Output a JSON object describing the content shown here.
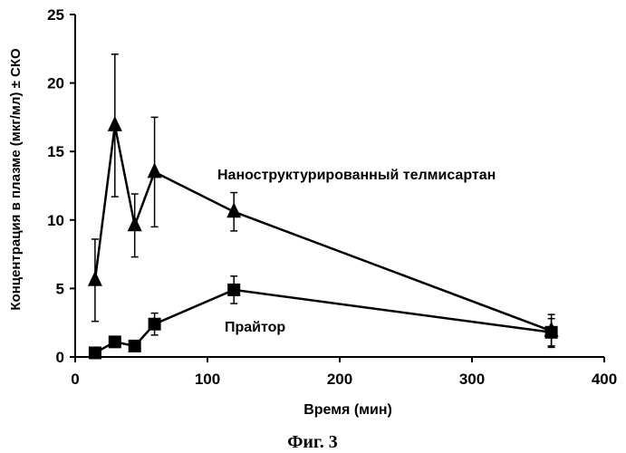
{
  "figure_caption": "Фиг. 3",
  "chart_data": {
    "type": "line",
    "title": "",
    "xlabel": "Время (мин)",
    "ylabel": "Концентрация в плазме (мкг/мл) ± СКО",
    "xlim": [
      0,
      400
    ],
    "ylim": [
      0,
      25
    ],
    "xticks": [
      0,
      100,
      200,
      300,
      400
    ],
    "yticks": [
      0,
      5,
      10,
      15,
      20,
      25
    ],
    "grid": false,
    "series": [
      {
        "name": "Наноструктурированный телмисартан",
        "marker": "triangle",
        "x": [
          15,
          30,
          45,
          60,
          120,
          360
        ],
        "y": [
          5.6,
          16.9,
          9.6,
          13.5,
          10.6,
          1.9
        ],
        "err": [
          3.0,
          5.2,
          2.3,
          4.0,
          1.4,
          1.2
        ]
      },
      {
        "name": "Прайтор",
        "marker": "square",
        "x": [
          15,
          30,
          45,
          60,
          120,
          360
        ],
        "y": [
          0.3,
          1.1,
          0.8,
          2.4,
          4.9,
          1.8
        ],
        "err": [
          0.2,
          0.2,
          0.2,
          0.8,
          1.0,
          1.0
        ]
      }
    ],
    "annotations": [
      {
        "text": "Наноструктурированный телмисартан",
        "series": 0
      },
      {
        "text": "Прайтор",
        "series": 1
      }
    ]
  }
}
